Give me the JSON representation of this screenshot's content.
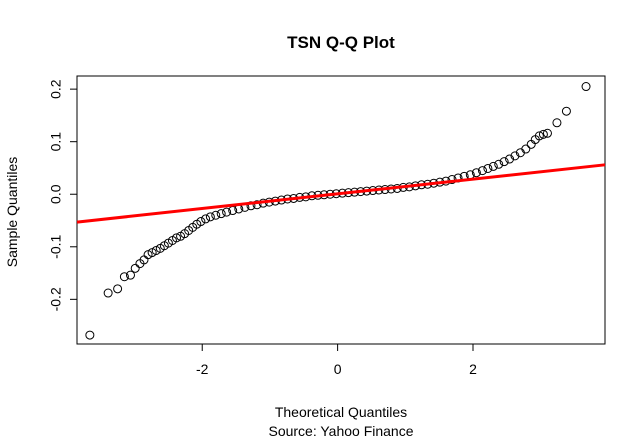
{
  "chart_data": {
    "type": "scatter",
    "title": "TSN Q-Q Plot",
    "xlabel": "Theoretical Quantiles",
    "ylabel": "Sample Quantiles",
    "caption": "Source: Yahoo Finance",
    "xlim": [
      -3.85,
      3.95
    ],
    "ylim": [
      -0.285,
      0.225
    ],
    "x_ticks": [
      -2,
      0,
      2
    ],
    "x_tick_labels": [
      "-2",
      "0",
      "2"
    ],
    "y_ticks": [
      -0.2,
      -0.1,
      0.0,
      0.1,
      0.2
    ],
    "y_tick_labels": [
      "-0.2",
      "-0.1",
      "0.0",
      "0.1",
      "0.2"
    ],
    "grid": false,
    "points": [
      [
        -3.66,
        -0.268
      ],
      [
        -3.39,
        -0.188
      ],
      [
        -3.25,
        -0.18
      ],
      [
        -3.15,
        -0.157
      ],
      [
        -3.06,
        -0.154
      ],
      [
        -2.99,
        -0.141
      ],
      [
        -2.92,
        -0.132
      ],
      [
        -2.86,
        -0.125
      ],
      [
        -2.8,
        -0.115
      ],
      [
        -2.74,
        -0.111
      ],
      [
        -2.68,
        -0.107
      ],
      [
        -2.62,
        -0.103
      ],
      [
        -2.56,
        -0.098
      ],
      [
        -2.5,
        -0.093
      ],
      [
        -2.44,
        -0.088
      ],
      [
        -2.38,
        -0.083
      ],
      [
        -2.32,
        -0.08
      ],
      [
        -2.26,
        -0.075
      ],
      [
        -2.2,
        -0.069
      ],
      [
        -2.14,
        -0.063
      ],
      [
        -2.08,
        -0.057
      ],
      [
        -2.02,
        -0.052
      ],
      [
        -1.95,
        -0.047
      ],
      [
        -1.88,
        -0.043
      ],
      [
        -1.8,
        -0.04
      ],
      [
        -1.72,
        -0.037
      ],
      [
        -1.64,
        -0.034
      ],
      [
        -1.55,
        -0.031
      ],
      [
        -1.46,
        -0.028
      ],
      [
        -1.37,
        -0.025
      ],
      [
        -1.28,
        -0.022
      ],
      [
        -1.19,
        -0.02
      ],
      [
        -1.1,
        -0.017
      ],
      [
        -1.01,
        -0.015
      ],
      [
        -0.92,
        -0.013
      ],
      [
        -0.83,
        -0.011
      ],
      [
        -0.74,
        -0.009
      ],
      [
        -0.65,
        -0.008
      ],
      [
        -0.56,
        -0.006
      ],
      [
        -0.47,
        -0.005
      ],
      [
        -0.38,
        -0.003
      ],
      [
        -0.29,
        -0.002
      ],
      [
        -0.2,
        -0.001
      ],
      [
        -0.11,
        0.0
      ],
      [
        -0.02,
        0.001
      ],
      [
        0.07,
        0.002
      ],
      [
        0.16,
        0.003
      ],
      [
        0.25,
        0.004
      ],
      [
        0.34,
        0.005
      ],
      [
        0.43,
        0.006
      ],
      [
        0.52,
        0.007
      ],
      [
        0.61,
        0.008
      ],
      [
        0.7,
        0.009
      ],
      [
        0.79,
        0.01
      ],
      [
        0.88,
        0.011
      ],
      [
        0.97,
        0.013
      ],
      [
        1.06,
        0.014
      ],
      [
        1.15,
        0.016
      ],
      [
        1.24,
        0.018
      ],
      [
        1.33,
        0.019
      ],
      [
        1.42,
        0.021
      ],
      [
        1.51,
        0.023
      ],
      [
        1.6,
        0.025
      ],
      [
        1.69,
        0.028
      ],
      [
        1.78,
        0.031
      ],
      [
        1.87,
        0.034
      ],
      [
        1.96,
        0.037
      ],
      [
        2.05,
        0.041
      ],
      [
        2.14,
        0.045
      ],
      [
        2.22,
        0.049
      ],
      [
        2.3,
        0.053
      ],
      [
        2.38,
        0.057
      ],
      [
        2.46,
        0.062
      ],
      [
        2.54,
        0.067
      ],
      [
        2.62,
        0.073
      ],
      [
        2.7,
        0.079
      ],
      [
        2.78,
        0.086
      ],
      [
        2.86,
        0.095
      ],
      [
        2.92,
        0.104
      ],
      [
        2.98,
        0.111
      ],
      [
        3.04,
        0.114
      ],
      [
        3.1,
        0.116
      ],
      [
        3.24,
        0.136
      ],
      [
        3.38,
        0.158
      ],
      [
        3.67,
        0.205
      ]
    ],
    "reference_line": {
      "x": [
        -3.85,
        3.95
      ],
      "y": [
        -0.053,
        0.056
      ],
      "color": "#ff0000"
    },
    "point_color": "#000000",
    "axis_color": "#000000"
  }
}
